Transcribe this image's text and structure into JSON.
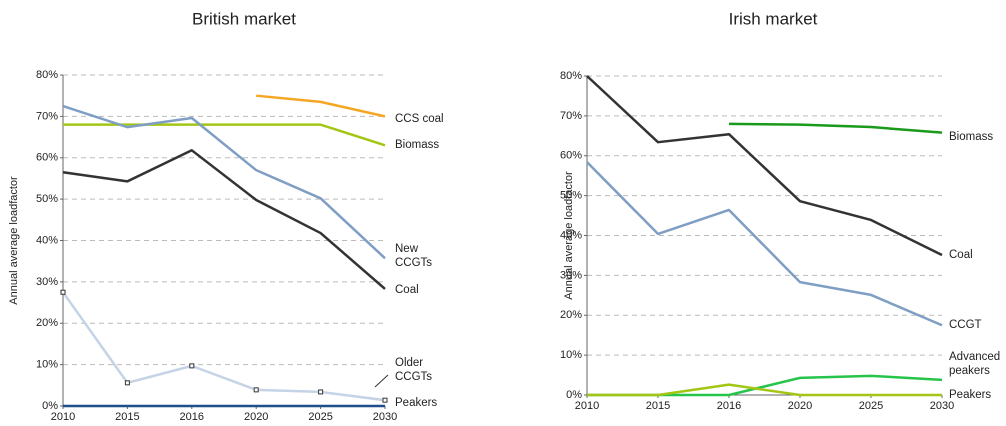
{
  "chart_data": [
    {
      "type": "line",
      "title": "British market",
      "y_label": "Annual average loadfactor",
      "categories": [
        "2010",
        "2015",
        "2016",
        "2020",
        "2025",
        "2030"
      ],
      "ylim": [
        0,
        80
      ],
      "yticks": [
        {
          "value": 0,
          "label": "0%"
        },
        {
          "value": 10,
          "label": "10%"
        },
        {
          "value": 20,
          "label": "20%"
        },
        {
          "value": 30,
          "label": "30%"
        },
        {
          "value": 40,
          "label": "40%"
        },
        {
          "value": 50,
          "label": "50%"
        },
        {
          "value": 60,
          "label": "60%"
        },
        {
          "value": 70,
          "label": "70%"
        },
        {
          "value": 80,
          "label": "80%"
        }
      ],
      "grid": true,
      "series": [
        {
          "name": "CCS coal",
          "color": "#f5a623",
          "values": [
            null,
            null,
            null,
            75,
            73.5,
            70
          ]
        },
        {
          "name": "Biomass",
          "color": "#a3c614",
          "values": [
            68,
            68,
            68,
            68,
            68,
            63
          ]
        },
        {
          "name": "New CCGTs",
          "color": "#7f9ec4",
          "values": [
            72.5,
            67.4,
            69.6,
            57,
            50.2,
            35.7
          ]
        },
        {
          "name": "Coal",
          "color": "#333333",
          "values": [
            56.5,
            54.3,
            61.8,
            49.8,
            41.8,
            28.3
          ]
        },
        {
          "name": "Older CCGTs",
          "color": "#c5d3e6",
          "marker": "square",
          "values": [
            27.5,
            5.6,
            9.7,
            3.9,
            3.4,
            1.4
          ]
        },
        {
          "name": "Peakers",
          "color": "#1f4e8c",
          "values": [
            0,
            0,
            0,
            0,
            0,
            0
          ]
        }
      ]
    },
    {
      "type": "line",
      "title": "Irish market",
      "y_label": "Annual average loadfactor",
      "categories": [
        "2010",
        "2015",
        "2016",
        "2020",
        "2025",
        "2030"
      ],
      "ylim": [
        0,
        80
      ],
      "yticks": [
        {
          "value": 0,
          "label": "0%"
        },
        {
          "value": 10,
          "label": "10%"
        },
        {
          "value": 20,
          "label": "20%"
        },
        {
          "value": 30,
          "label": "30%"
        },
        {
          "value": 40,
          "label": "40%"
        },
        {
          "value": 50,
          "label": "50%"
        },
        {
          "value": 60,
          "label": "60%"
        },
        {
          "value": 70,
          "label": "70%"
        },
        {
          "value": 80,
          "label": "80%"
        }
      ],
      "grid": true,
      "series": [
        {
          "name": "Biomass",
          "color": "#1a9a1a",
          "values": [
            null,
            null,
            68,
            67.8,
            67.2,
            65.8
          ]
        },
        {
          "name": "Coal",
          "color": "#333333",
          "values": [
            80,
            63.4,
            65.4,
            48.6,
            43.9,
            35.1
          ]
        },
        {
          "name": "CCGT",
          "color": "#7f9ec4",
          "values": [
            58.4,
            40.4,
            46.4,
            28.3,
            25.1,
            17.5
          ]
        },
        {
          "name": "Advanced peakers",
          "color": "#27c44b",
          "values": [
            0,
            0,
            0,
            4.3,
            4.8,
            3.8
          ]
        },
        {
          "name": "Peakers",
          "color": "#a3c614",
          "values": [
            0,
            0,
            2.6,
            0,
            0,
            0
          ]
        }
      ]
    }
  ]
}
